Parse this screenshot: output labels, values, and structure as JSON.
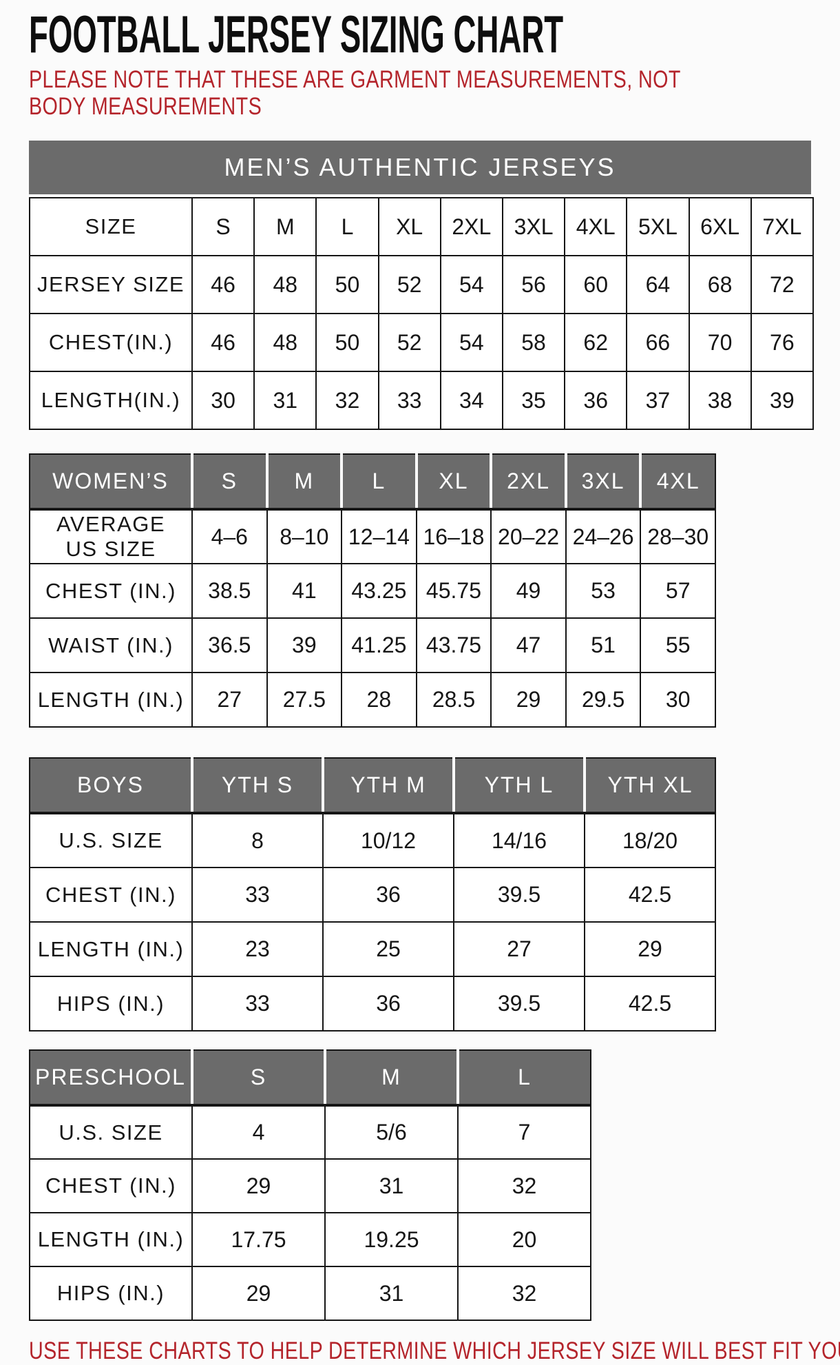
{
  "page": {
    "title": "FOOTBALL JERSEY SIZING CHART",
    "note": "PLEASE NOTE THAT THESE ARE GARMENT MEASUREMENTS, NOT BODY MEASUREMENTS",
    "footer": "USE THESE CHARTS TO HELP DETERMINE WHICH JERSEY SIZE WILL BEST FIT YOU.",
    "colors": {
      "header_gray": "#6b6b6b",
      "accent_red": "#b4242b",
      "grid_black": "#161616",
      "page_background": "#fbfbfb"
    }
  },
  "tables": [
    {
      "id": "mens",
      "banner": "MEN’S AUTHENTIC JERSEYS",
      "header": null,
      "rows": [
        {
          "label": "SIZE",
          "values": [
            "S",
            "M",
            "L",
            "XL",
            "2XL",
            "3XL",
            "4XL",
            "5XL",
            "6XL",
            "7XL"
          ]
        },
        {
          "label": "JERSEY SIZE",
          "values": [
            "46",
            "48",
            "50",
            "52",
            "54",
            "56",
            "60",
            "64",
            "68",
            "72"
          ]
        },
        {
          "label": "CHEST(IN.)",
          "values": [
            "46",
            "48",
            "50",
            "52",
            "54",
            "58",
            "62",
            "66",
            "70",
            "76"
          ]
        },
        {
          "label": "LENGTH(IN.)",
          "values": [
            "30",
            "31",
            "32",
            "33",
            "34",
            "35",
            "36",
            "37",
            "38",
            "39"
          ]
        }
      ]
    },
    {
      "id": "womens",
      "banner": null,
      "header": {
        "label": "WOMEN’S",
        "values": [
          "S",
          "M",
          "L",
          "XL",
          "2XL",
          "3XL",
          "4XL"
        ]
      },
      "rows": [
        {
          "label": "AVERAGE\nUS SIZE",
          "values": [
            "4–6",
            "8–10",
            "12–14",
            "16–18",
            "20–22",
            "24–26",
            "28–30"
          ]
        },
        {
          "label": "CHEST (IN.)",
          "values": [
            "38.5",
            "41",
            "43.25",
            "45.75",
            "49",
            "53",
            "57"
          ]
        },
        {
          "label": "WAIST (IN.)",
          "values": [
            "36.5",
            "39",
            "41.25",
            "43.75",
            "47",
            "51",
            "55"
          ]
        },
        {
          "label": "LENGTH (IN.)",
          "values": [
            "27",
            "27.5",
            "28",
            "28.5",
            "29",
            "29.5",
            "30"
          ]
        }
      ]
    },
    {
      "id": "boys",
      "banner": null,
      "header": {
        "label": "BOYS",
        "values": [
          "YTH S",
          "YTH M",
          "YTH L",
          "YTH XL"
        ]
      },
      "rows": [
        {
          "label": "U.S. SIZE",
          "values": [
            "8",
            "10/12",
            "14/16",
            "18/20"
          ]
        },
        {
          "label": "CHEST (IN.)",
          "values": [
            "33",
            "36",
            "39.5",
            "42.5"
          ]
        },
        {
          "label": "LENGTH (IN.)",
          "values": [
            "23",
            "25",
            "27",
            "29"
          ]
        },
        {
          "label": "HIPS (IN.)",
          "values": [
            "33",
            "36",
            "39.5",
            "42.5"
          ]
        }
      ]
    },
    {
      "id": "preschool",
      "banner": null,
      "header": {
        "label": "PRESCHOOL",
        "values": [
          "S",
          "M",
          "L"
        ]
      },
      "rows": [
        {
          "label": "U.S. SIZE",
          "values": [
            "4",
            "5/6",
            "7"
          ]
        },
        {
          "label": "CHEST (IN.)",
          "values": [
            "29",
            "31",
            "32"
          ]
        },
        {
          "label": "LENGTH (IN.)",
          "values": [
            "17.75",
            "19.25",
            "20"
          ]
        },
        {
          "label": "HIPS (IN.)",
          "values": [
            "29",
            "31",
            "32"
          ]
        }
      ]
    }
  ]
}
